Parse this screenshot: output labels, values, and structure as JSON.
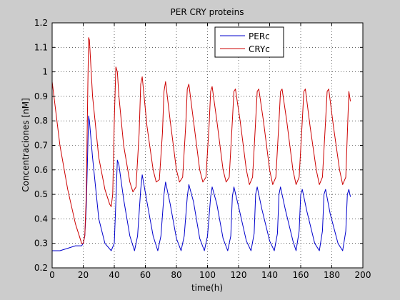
{
  "chart_data": {
    "type": "line",
    "title": "PER CRY proteins",
    "xlabel": "time(h)",
    "ylabel": "Concentraciones [nM]",
    "xlim": [
      0,
      200
    ],
    "ylim": [
      0.2,
      1.2
    ],
    "xticks": [
      "0",
      "20",
      "40",
      "60",
      "80",
      "100",
      "120",
      "140",
      "160",
      "180",
      "200"
    ],
    "yticks": [
      "0.2",
      "0.3",
      "0.4",
      "0.5",
      "0.6",
      "0.7",
      "0.8",
      "0.9",
      "1",
      "1.1",
      "1.2"
    ],
    "grid": true,
    "legend_position": "top-right",
    "series": [
      {
        "name": "PERc",
        "color": "#0000cc",
        "x": [
          0,
          5,
          10,
          15,
          19,
          20,
          21,
          22,
          23,
          23.5,
          24,
          26,
          30,
          34,
          38,
          40,
          41,
          42,
          43,
          46,
          50,
          53,
          55,
          57,
          58,
          61,
          65,
          68,
          70,
          72,
          73,
          76,
          80,
          83,
          85,
          87,
          88,
          91,
          95,
          98,
          100,
          102,
          103,
          106,
          110,
          113,
          115,
          116,
          117,
          120,
          125,
          128,
          130,
          131,
          132,
          135,
          140,
          143,
          145,
          146,
          147,
          150,
          155,
          157,
          159,
          160,
          161,
          164,
          169,
          172,
          174,
          175,
          176,
          179,
          184,
          187,
          189,
          190,
          191,
          192
        ],
        "values": [
          0.27,
          0.27,
          0.28,
          0.29,
          0.29,
          0.3,
          0.33,
          0.45,
          0.7,
          0.82,
          0.8,
          0.65,
          0.4,
          0.3,
          0.27,
          0.3,
          0.47,
          0.64,
          0.62,
          0.48,
          0.33,
          0.27,
          0.33,
          0.52,
          0.58,
          0.47,
          0.33,
          0.27,
          0.33,
          0.5,
          0.55,
          0.46,
          0.32,
          0.27,
          0.33,
          0.49,
          0.54,
          0.47,
          0.32,
          0.27,
          0.33,
          0.49,
          0.53,
          0.46,
          0.32,
          0.27,
          0.33,
          0.49,
          0.53,
          0.45,
          0.31,
          0.27,
          0.34,
          0.5,
          0.53,
          0.44,
          0.31,
          0.27,
          0.34,
          0.5,
          0.53,
          0.44,
          0.31,
          0.27,
          0.35,
          0.5,
          0.52,
          0.43,
          0.3,
          0.27,
          0.35,
          0.5,
          0.52,
          0.42,
          0.3,
          0.27,
          0.35,
          0.5,
          0.52,
          0.49
        ]
      },
      {
        "name": "CRYc",
        "color": "#cc0000",
        "x": [
          0,
          5,
          10,
          15,
          19,
          20,
          21,
          22,
          23,
          23.5,
          24,
          26,
          30,
          34,
          37,
          38,
          39,
          40,
          41,
          42,
          43,
          46,
          50,
          52,
          54,
          56,
          57,
          58,
          61,
          65,
          67,
          69,
          71,
          72,
          73,
          76,
          80,
          82,
          84,
          86,
          87,
          88,
          91,
          95,
          97,
          99,
          101,
          102,
          103,
          106,
          110,
          112,
          114,
          116,
          117,
          118,
          121,
          125,
          127,
          129,
          131,
          132,
          133,
          136,
          140,
          142,
          144,
          146,
          147,
          148,
          151,
          155,
          157,
          159,
          161,
          162,
          163,
          166,
          170,
          172,
          174,
          176,
          177,
          178,
          181,
          185,
          187,
          189,
          191,
          192
        ],
        "values": [
          0.96,
          0.7,
          0.52,
          0.38,
          0.3,
          0.3,
          0.33,
          0.5,
          0.95,
          1.14,
          1.13,
          0.9,
          0.65,
          0.52,
          0.46,
          0.45,
          0.5,
          0.8,
          1.02,
          1.0,
          0.9,
          0.7,
          0.55,
          0.51,
          0.53,
          0.75,
          0.95,
          0.98,
          0.78,
          0.6,
          0.55,
          0.56,
          0.75,
          0.92,
          0.96,
          0.8,
          0.6,
          0.55,
          0.57,
          0.78,
          0.93,
          0.95,
          0.8,
          0.6,
          0.55,
          0.57,
          0.78,
          0.92,
          0.94,
          0.8,
          0.6,
          0.55,
          0.57,
          0.8,
          0.92,
          0.93,
          0.8,
          0.6,
          0.54,
          0.57,
          0.8,
          0.92,
          0.93,
          0.8,
          0.6,
          0.54,
          0.57,
          0.8,
          0.92,
          0.93,
          0.8,
          0.6,
          0.54,
          0.57,
          0.8,
          0.92,
          0.93,
          0.78,
          0.6,
          0.54,
          0.57,
          0.8,
          0.92,
          0.93,
          0.78,
          0.6,
          0.54,
          0.57,
          0.92,
          0.88
        ]
      }
    ]
  }
}
